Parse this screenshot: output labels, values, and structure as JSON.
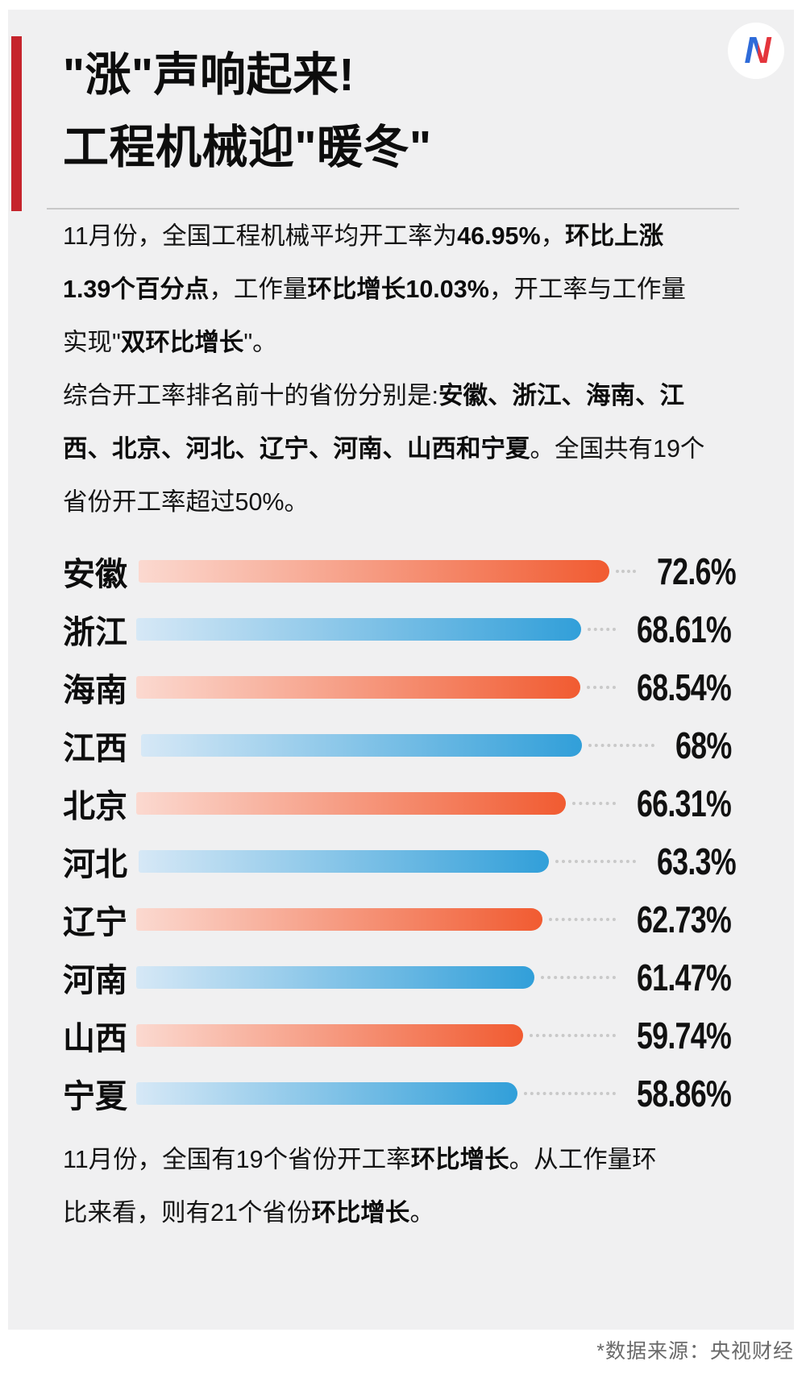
{
  "page": {
    "background": "#ffffff",
    "card_background": "#f0f0f1"
  },
  "header": {
    "accent_color": "#c5242c",
    "title_line1": "\"涨\"声响起来!",
    "title_line2": "工程机械迎\"暖冬\"",
    "logo": {
      "letter": "N",
      "blue": "#2e6bd9",
      "red": "#e4353c"
    }
  },
  "paragraphs": {
    "summary": {
      "segments": [
        {
          "t": "11月份，全国工程机械平均开工率为",
          "b": false
        },
        {
          "t": "46.95%",
          "b": true
        },
        {
          "t": "，",
          "b": false
        },
        {
          "t": "环比上涨1.39个百分点",
          "b": true
        },
        {
          "t": "，工作量",
          "b": false
        },
        {
          "t": "环比增长10.03%",
          "b": true
        },
        {
          "t": "，开工率与工作量实现\"",
          "b": false
        },
        {
          "t": "双环比增长",
          "b": true
        },
        {
          "t": "\"。",
          "b": false
        }
      ]
    },
    "ranking": {
      "segments": [
        {
          "t": "综合开工率排名前十的省份分别是:",
          "b": false
        },
        {
          "t": "安徽、浙江、海南、江西、北京、河北、辽宁、河南、山西和宁夏",
          "b": true
        },
        {
          "t": "。全国共有19个省份开工率超过50%。",
          "b": false
        }
      ]
    },
    "note": {
      "segments": [
        {
          "t": "11月份，全国有19个省份开工率",
          "b": false
        },
        {
          "t": "环比增长",
          "b": true
        },
        {
          "t": "。从工作量环比来看，则有21个省份",
          "b": false
        },
        {
          "t": "环比增长",
          "b": true
        },
        {
          "t": "。",
          "b": false
        }
      ]
    }
  },
  "chart_data": {
    "type": "bar",
    "orientation": "horizontal",
    "title": "综合开工率排名前十的省份",
    "unit": "%",
    "xlim": [
      0,
      100
    ],
    "grid": false,
    "categories": [
      "安徽",
      "浙江",
      "海南",
      "江西",
      "北京",
      "河北",
      "辽宁",
      "河南",
      "山西",
      "宁夏"
    ],
    "values": [
      72.6,
      68.61,
      68.54,
      68,
      66.31,
      63.3,
      62.73,
      61.47,
      59.74,
      58.86
    ],
    "value_labels": [
      "72.6%",
      "68.61%",
      "68.54%",
      "68%",
      "66.31%",
      "63.3%",
      "62.73%",
      "61.47%",
      "59.74%",
      "58.86%"
    ],
    "bar_colors": [
      "orange",
      "blue",
      "orange",
      "blue",
      "orange",
      "blue",
      "orange",
      "blue",
      "orange",
      "blue"
    ],
    "palette": {
      "orange": [
        "#fbd9d0",
        "#f15b31"
      ],
      "blue": [
        "#d6e8f6",
        "#319fd9"
      ]
    },
    "leader_dot_color": "#c9c9c9"
  },
  "footer": {
    "source": "*数据来源：央视财经"
  }
}
